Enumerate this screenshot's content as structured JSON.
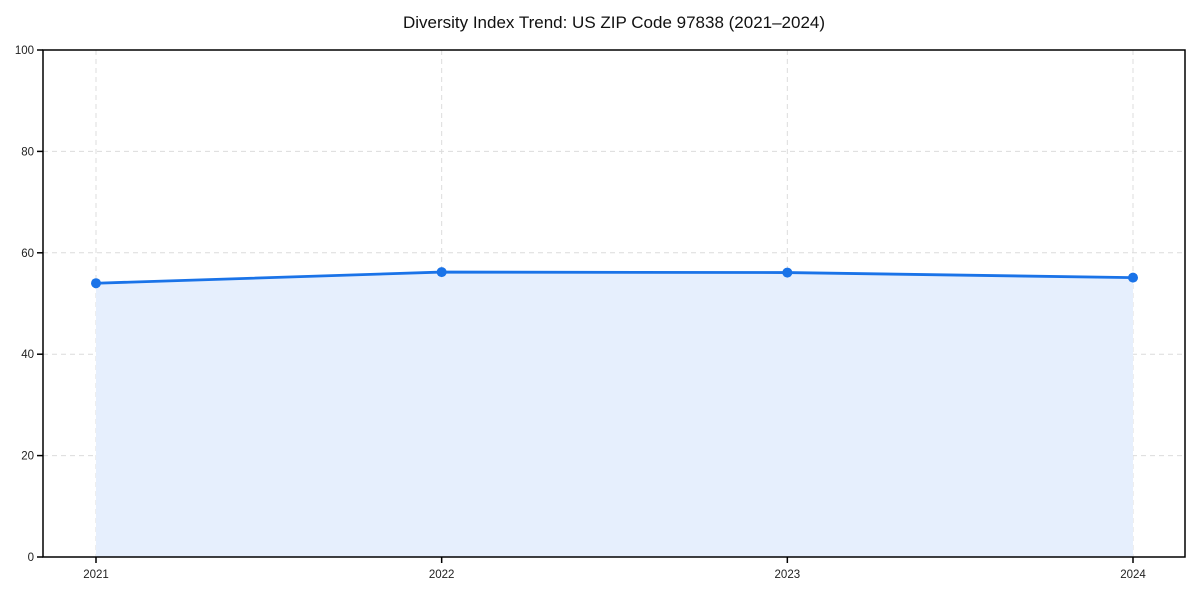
{
  "chart_data": {
    "type": "area",
    "title": "Diversity Index Trend: US ZIP Code 97838 (2021–2024)",
    "x": [
      "2021",
      "2022",
      "2023",
      "2024"
    ],
    "values": [
      54.0,
      56.2,
      56.1,
      55.1
    ],
    "xlabel": "",
    "ylabel": "",
    "ylim": [
      0,
      100
    ],
    "yticks": [
      0,
      20,
      40,
      60,
      80,
      100
    ],
    "grid": "dashed, both axes",
    "legend": "none",
    "line_color": "#1a73e8",
    "marker_color": "#1a73e8",
    "area_fill_color": "#e6effd",
    "grid_color": "#dcdcdc",
    "spine_color": "#000000",
    "tick_label_color": "#222222",
    "title_color": "#111111"
  }
}
